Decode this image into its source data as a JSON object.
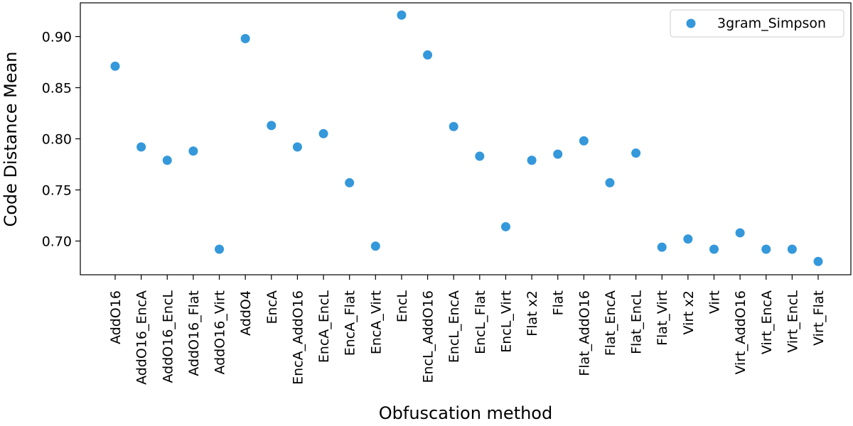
{
  "chart_data": {
    "type": "scatter",
    "title": "",
    "xlabel": "Obfuscation method",
    "ylabel": "Code Distance Mean",
    "categories": [
      "AddO16",
      "AddO16_EncA",
      "AddO16_EncL",
      "AddO16_Flat",
      "AddO16_Virt",
      "AddO4",
      "EncA",
      "EncA_AddO16",
      "EncA_EncL",
      "EncA_Flat",
      "EncA_Virt",
      "EncL",
      "EncL_AddO16",
      "EncL_EncA",
      "EncL_Flat",
      "EncL_Virt",
      "Flat x2",
      "Flat",
      "Flat_AddO16",
      "Flat_EncA",
      "Flat_EncL",
      "Flat_Virt",
      "Virt x2",
      "Virt",
      "Virt_AddO16",
      "Virt_EncA",
      "Virt_EncL",
      "Virt_Flat"
    ],
    "series": [
      {
        "name": "3gram_Simpson",
        "color": "#3498db",
        "values": [
          0.871,
          0.792,
          0.779,
          0.788,
          0.692,
          0.898,
          0.813,
          0.792,
          0.805,
          0.757,
          0.695,
          0.921,
          0.882,
          0.812,
          0.783,
          0.714,
          0.779,
          0.785,
          0.798,
          0.757,
          0.786,
          0.694,
          0.702,
          0.692,
          0.708,
          0.692,
          0.692,
          0.68
        ]
      }
    ],
    "ylim": [
      0.667,
      0.933
    ],
    "yticks": [
      "0.70",
      "0.75",
      "0.80",
      "0.85",
      "0.90"
    ],
    "grid": false,
    "legend": "top-right"
  }
}
